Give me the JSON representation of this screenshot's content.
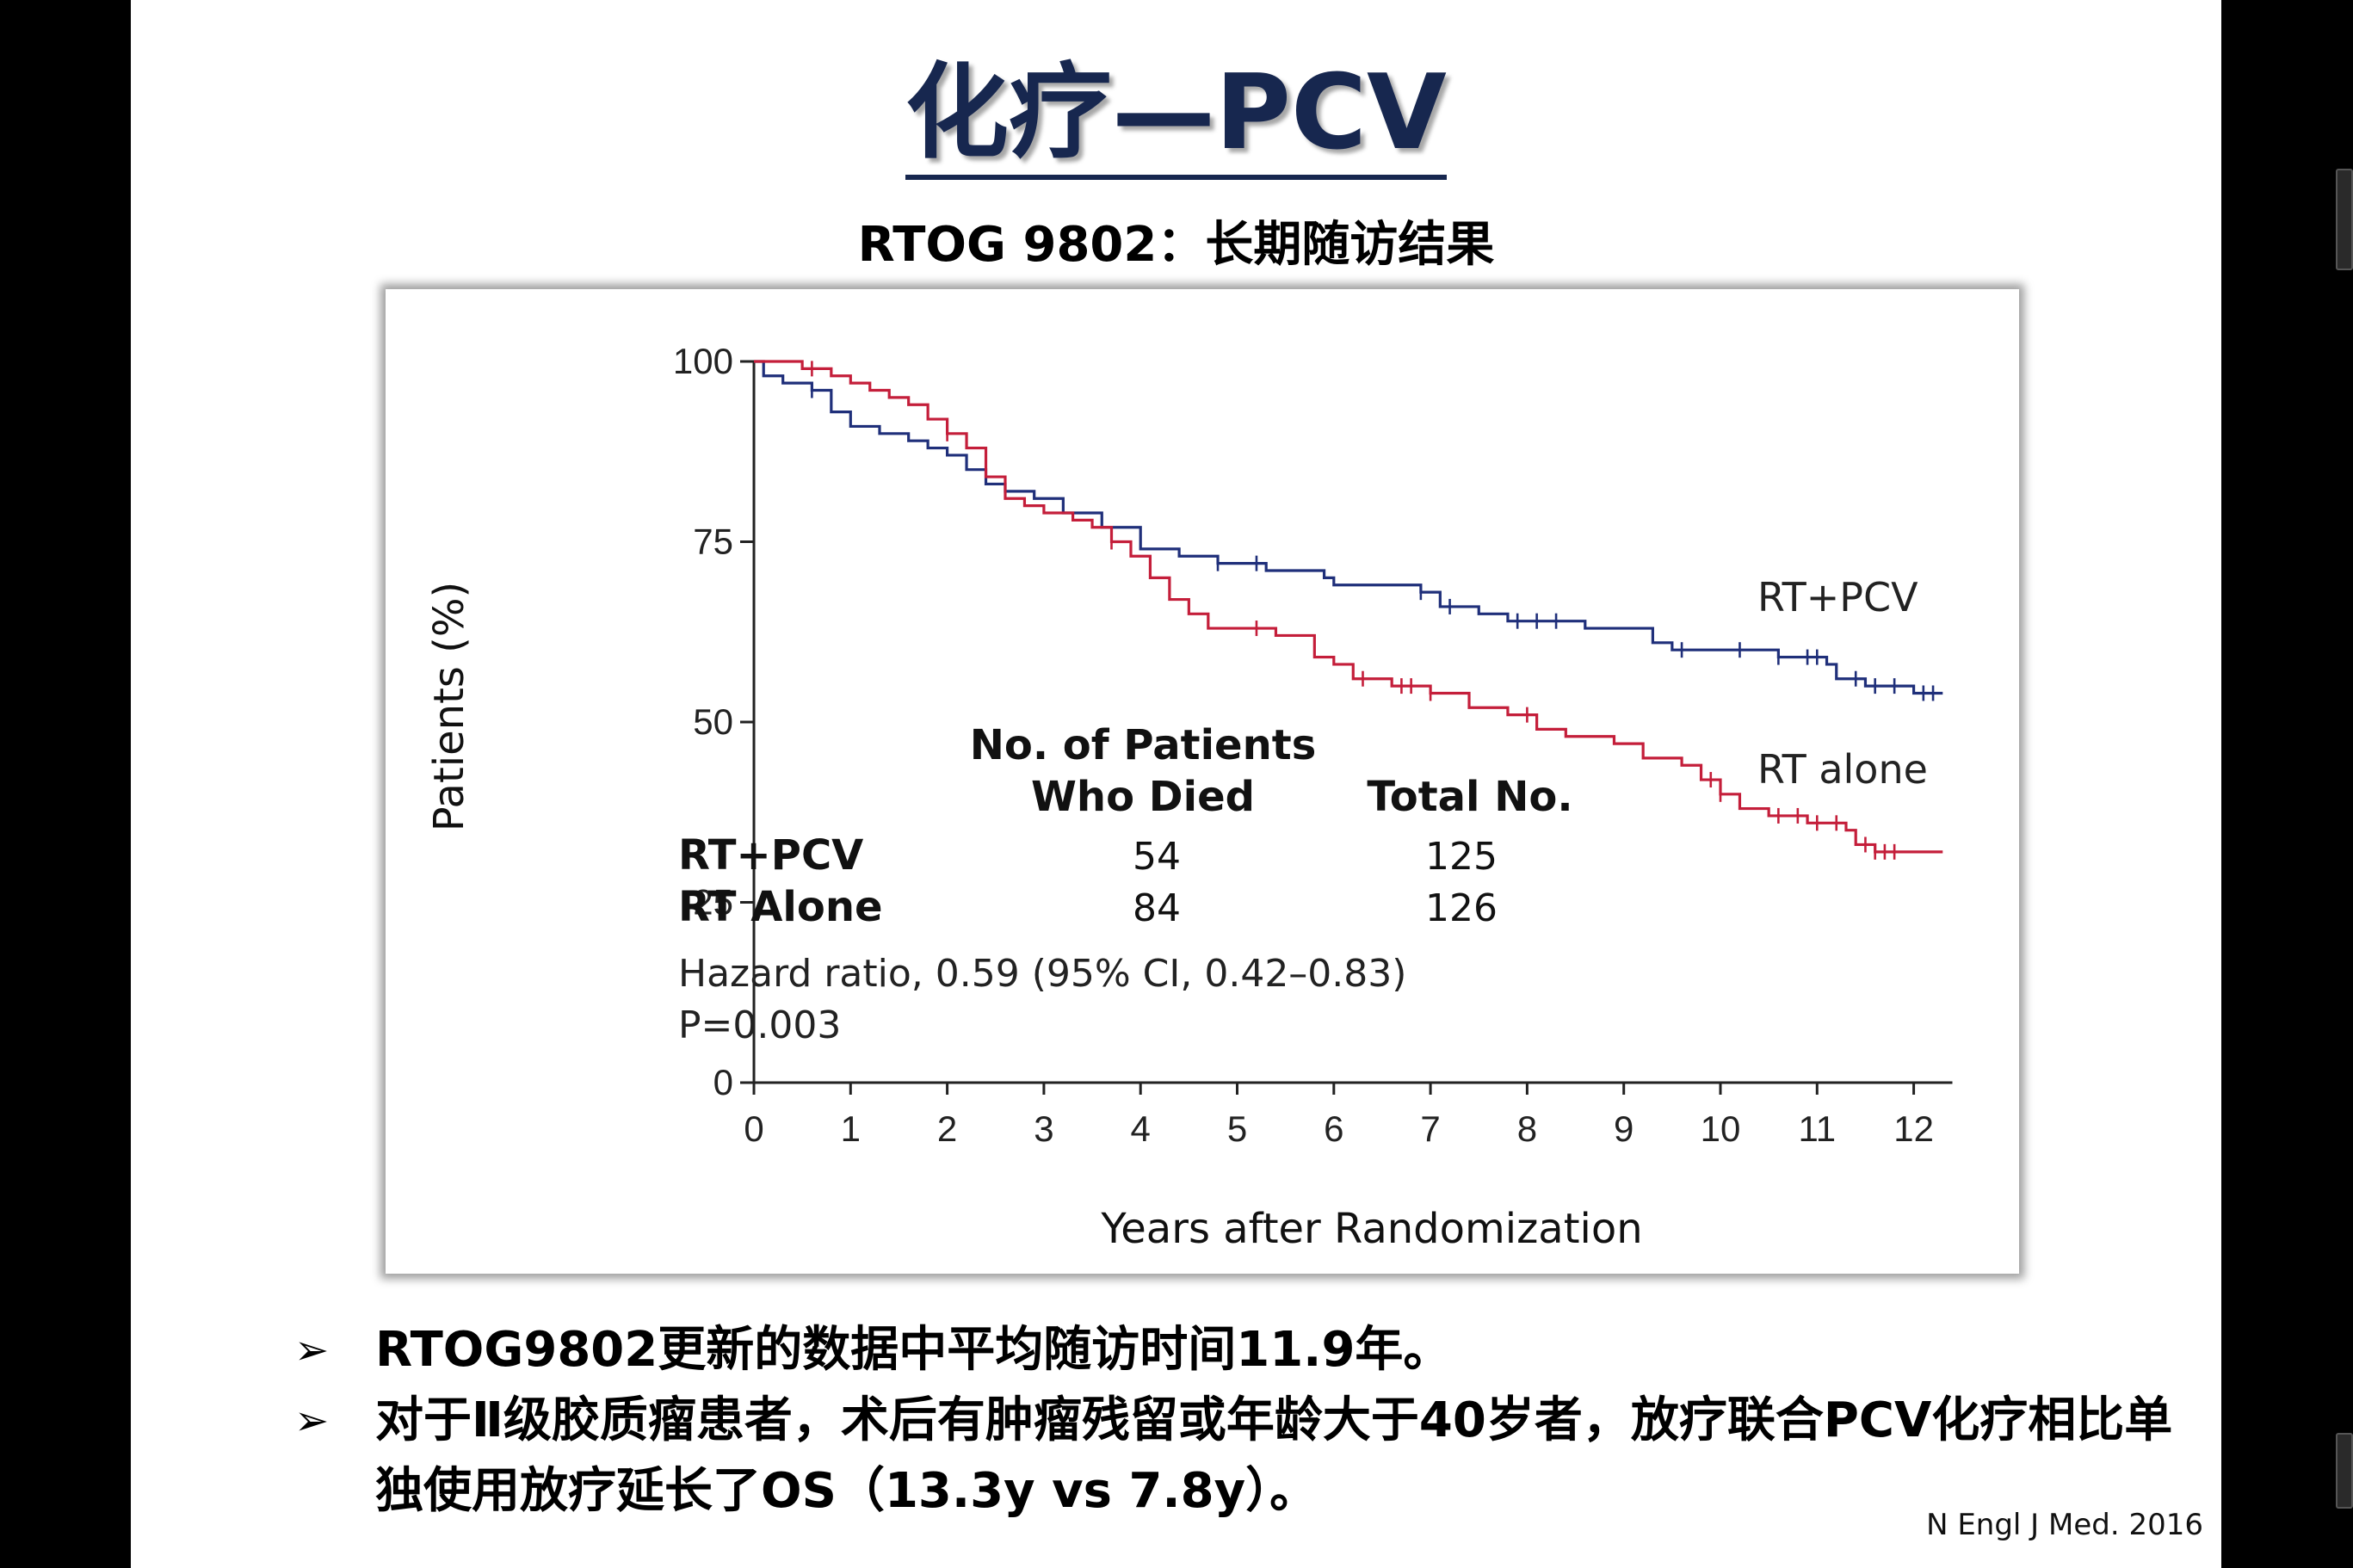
{
  "slide": {
    "title": "化疗—PCV",
    "subtitle": "RTOG 9802：长期随访结果",
    "bullets": [
      {
        "marker": "➢",
        "text": "RTOG9802更新的数据中平均随访时间11.9年。"
      },
      {
        "marker": "➢",
        "text": "对于Ⅱ级胶质瘤患者，术后有肿瘤残留或年龄大于40岁者，放疗联合PCV化疗相比单独使用放疗延长了OS（13.3y vs 7.8y）。"
      }
    ],
    "citation": "N Engl J Med. 2016"
  },
  "chart_data": {
    "type": "line",
    "xlabel": "Years after Randomization",
    "ylabel": "Patients (%)",
    "xlim": [
      0,
      12.4
    ],
    "ylim": [
      0,
      100
    ],
    "x_ticks": [
      "0",
      "1",
      "2",
      "3",
      "4",
      "5",
      "6",
      "7",
      "8",
      "9",
      "10",
      "11",
      "12"
    ],
    "y_ticks": [
      "0",
      "25",
      "50",
      "75",
      "100"
    ],
    "grid": false,
    "series": [
      {
        "name": "RT+PCV",
        "color": "#1f2f7a",
        "points": [
          [
            0,
            100
          ],
          [
            0.1,
            98
          ],
          [
            0.3,
            97
          ],
          [
            0.6,
            96
          ],
          [
            0.8,
            93
          ],
          [
            1.0,
            91
          ],
          [
            1.3,
            90
          ],
          [
            1.6,
            89
          ],
          [
            1.8,
            88
          ],
          [
            2.0,
            87
          ],
          [
            2.2,
            85
          ],
          [
            2.4,
            83
          ],
          [
            2.6,
            82
          ],
          [
            2.9,
            81
          ],
          [
            3.2,
            79
          ],
          [
            3.6,
            77
          ],
          [
            4.0,
            74
          ],
          [
            4.4,
            73
          ],
          [
            4.8,
            72
          ],
          [
            5.3,
            71
          ],
          [
            5.9,
            70
          ],
          [
            6.0,
            69
          ],
          [
            6.9,
            68
          ],
          [
            7.1,
            66
          ],
          [
            7.5,
            65
          ],
          [
            7.8,
            64
          ],
          [
            8.6,
            63
          ],
          [
            9.3,
            61
          ],
          [
            9.5,
            60
          ],
          [
            10.2,
            60
          ],
          [
            10.6,
            59
          ],
          [
            11.1,
            58
          ],
          [
            11.2,
            56
          ],
          [
            11.5,
            55
          ],
          [
            11.9,
            55
          ],
          [
            12.0,
            54
          ],
          [
            12.3,
            54
          ]
        ],
        "censor_x": [
          0.6,
          4.8,
          5.2,
          6.9,
          7.2,
          7.9,
          8.1,
          8.3,
          9.6,
          10.2,
          10.6,
          10.9,
          11.0,
          11.4,
          11.6,
          11.8,
          12.1,
          12.2
        ]
      },
      {
        "name": "RT alone",
        "color": "#c41e3a",
        "points": [
          [
            0,
            100
          ],
          [
            0.2,
            100
          ],
          [
            0.5,
            99
          ],
          [
            0.8,
            98
          ],
          [
            1.0,
            97
          ],
          [
            1.2,
            96
          ],
          [
            1.4,
            95
          ],
          [
            1.6,
            94
          ],
          [
            1.8,
            92
          ],
          [
            2.0,
            90
          ],
          [
            2.2,
            88
          ],
          [
            2.4,
            84
          ],
          [
            2.6,
            81
          ],
          [
            2.8,
            80
          ],
          [
            3.0,
            79
          ],
          [
            3.3,
            78
          ],
          [
            3.5,
            77
          ],
          [
            3.7,
            75
          ],
          [
            3.9,
            73
          ],
          [
            4.1,
            70
          ],
          [
            4.3,
            67
          ],
          [
            4.5,
            65
          ],
          [
            4.7,
            63
          ],
          [
            5.0,
            63
          ],
          [
            5.4,
            62
          ],
          [
            5.8,
            59
          ],
          [
            6.0,
            58
          ],
          [
            6.2,
            56
          ],
          [
            6.6,
            55
          ],
          [
            7.0,
            54
          ],
          [
            7.4,
            52
          ],
          [
            7.8,
            51
          ],
          [
            8.1,
            49
          ],
          [
            8.4,
            48
          ],
          [
            8.9,
            47
          ],
          [
            9.2,
            45
          ],
          [
            9.6,
            44
          ],
          [
            9.8,
            42
          ],
          [
            10.0,
            40
          ],
          [
            10.2,
            38
          ],
          [
            10.5,
            37
          ],
          [
            10.9,
            36
          ],
          [
            11.3,
            35
          ],
          [
            11.4,
            33
          ],
          [
            11.6,
            32
          ],
          [
            11.9,
            32
          ],
          [
            12.3,
            32
          ]
        ],
        "censor_x": [
          0.6,
          2.0,
          3.7,
          5.2,
          6.3,
          6.7,
          6.8,
          7.0,
          8.0,
          9.9,
          10.0,
          10.6,
          10.8,
          11.0,
          11.2,
          11.5,
          11.6,
          11.7,
          11.8
        ]
      }
    ],
    "legend": {
      "header1": "No. of Patients",
      "header2": "Who Died",
      "header3": "Total No.",
      "rows": [
        {
          "name": "RT+PCV",
          "died": "54",
          "total": "125"
        },
        {
          "name": "RT Alone",
          "died": "84",
          "total": "126"
        }
      ],
      "hazard": "Hazard ratio, 0.59 (95% CI, 0.42–0.83)",
      "p_value": "P=0.003"
    },
    "series_labels": [
      "RT+PCV",
      "RT alone"
    ]
  }
}
